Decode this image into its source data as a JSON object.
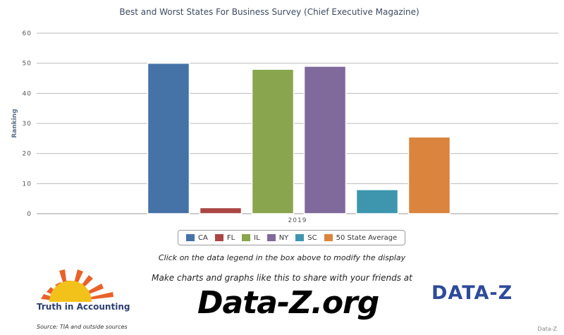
{
  "chart_data": {
    "type": "bar",
    "title": "Best and Worst States For Business Survey (Chief Executive Magazine)",
    "ylabel": "Ranking",
    "xlabel": "",
    "categories": [
      "2019"
    ],
    "ylim": [
      0,
      60
    ],
    "yticks": [
      0,
      10,
      20,
      30,
      40,
      50,
      60
    ],
    "grid": true,
    "legend_position": "bottom",
    "series": [
      {
        "name": "CA",
        "values": [
          50
        ],
        "color": "#4572a7"
      },
      {
        "name": "FL",
        "values": [
          2
        ],
        "color": "#aa4643"
      },
      {
        "name": "IL",
        "values": [
          48
        ],
        "color": "#89a54e"
      },
      {
        "name": "NY",
        "values": [
          49
        ],
        "color": "#80699b"
      },
      {
        "name": "SC",
        "values": [
          8
        ],
        "color": "#3d96ae"
      },
      {
        "name": "50 State Average",
        "values": [
          25.5
        ],
        "color": "#db843d"
      }
    ]
  },
  "captions": {
    "hint": "Click on the data legend in the box above to modify the display",
    "promo": "Make charts and graphs like this to share with your friends at",
    "big_url": "Data-Z.org",
    "source": "Source: TIA and outside sources",
    "credit": "Data-Z"
  },
  "logos": {
    "tia_text": "Truth in Accounting",
    "dataz_text": "DATA-Z"
  }
}
